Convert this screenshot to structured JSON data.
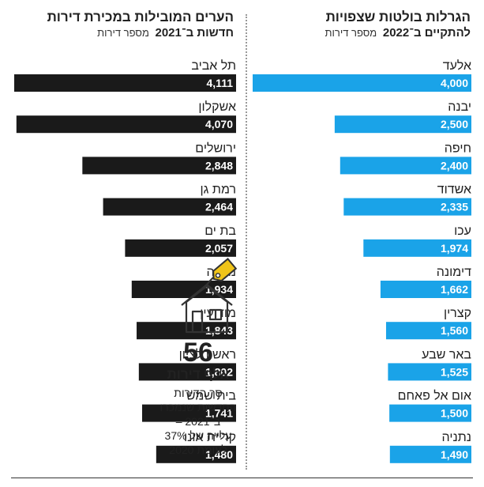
{
  "chart_data": [
    {
      "type": "bar",
      "orientation": "horizontal",
      "title": "הגרלות בולטות שצפויות להתקיים ב־2022",
      "title_line1": "הגרלות בולטות שצפויות",
      "title_line2": "להתקיים ב־2022",
      "unit_label": "מספר דירות",
      "color": "#1aa3e8",
      "categories": [
        "אלעד",
        "יבנה",
        "חיפה",
        "אשדוד",
        "עכו",
        "דימונה",
        "קצרין",
        "באר שבע",
        "אום אל פאחם",
        "נתניה"
      ],
      "values": [
        4000,
        2500,
        2400,
        2335,
        1974,
        1662,
        1560,
        1525,
        1500,
        1490
      ],
      "value_labels": [
        "4,000",
        "2,500",
        "2,400",
        "2,335",
        "1,974",
        "1,662",
        "1,560",
        "1,525",
        "1,500",
        "1,490"
      ],
      "xlim": [
        0,
        4000
      ]
    },
    {
      "type": "bar",
      "orientation": "horizontal",
      "title": "הערים המובילות במכירת דירות חדשות ב־2021",
      "title_line1": "הערים המובילות במכירת דירות",
      "title_line2": "חדשות ב־2021",
      "unit_label": "מספר דירות",
      "color": "#1a1a1a",
      "categories": [
        "תל אביב",
        "אשקלון",
        "ירושלים",
        "רמת גן",
        "בת ים",
        "נתניה",
        "מודיעין",
        "ראשון לציון",
        "בית שמש",
        "קריית אונו"
      ],
      "values": [
        4111,
        4070,
        2848,
        2464,
        2057,
        1934,
        1843,
        1802,
        1741,
        1480
      ],
      "value_labels": [
        "4,111",
        "4,070",
        "2,848",
        "2,464",
        "2,057",
        "1,934",
        "1,843",
        "1,802",
        "1,741",
        "1,480"
      ],
      "xlim": [
        0,
        4111
      ]
    }
  ],
  "callout": {
    "number": "56",
    "unit": "אלף דירות",
    "description": [
      "סך הדירות",
      "החדשות שנמכרו",
      "ב־2021 –",
      "עלייה של 37%",
      "לעומת 2020"
    ]
  }
}
